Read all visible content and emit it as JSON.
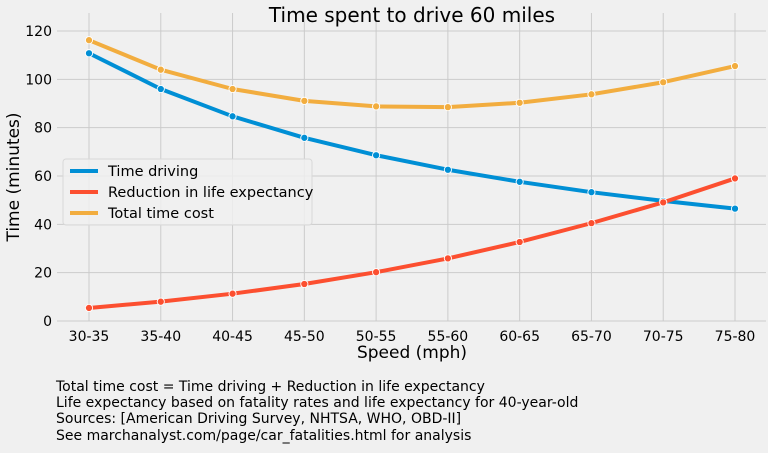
{
  "chart_data": {
    "type": "line",
    "title": "Time spent to drive 60 miles",
    "xlabel": "Speed (mph)",
    "ylabel": "Time (minutes)",
    "categories": [
      "30-35",
      "35-40",
      "40-45",
      "45-50",
      "50-55",
      "55-60",
      "60-65",
      "65-70",
      "70-75",
      "75-80"
    ],
    "ylim": [
      0,
      120
    ],
    "yticks": [
      0,
      20,
      40,
      60,
      80,
      100,
      120
    ],
    "grid": true,
    "legend_position": "center-left",
    "series": [
      {
        "name": "Time driving",
        "color": "#008fd5",
        "values": [
          110.8,
          96.0,
          84.7,
          75.8,
          68.6,
          62.6,
          57.6,
          53.3,
          49.7,
          46.5
        ]
      },
      {
        "name": "Reduction in life expectancy",
        "color": "#fc4f30",
        "values": [
          5.4,
          8.0,
          11.3,
          15.3,
          20.2,
          25.9,
          32.7,
          40.5,
          49.1,
          59.0
        ]
      },
      {
        "name": "Total time cost",
        "color": "#f2ad3f",
        "values": [
          116.2,
          104.0,
          96.0,
          91.1,
          88.8,
          88.5,
          90.3,
          93.8,
          98.8,
          105.5
        ]
      }
    ]
  },
  "footnotes": [
    "Total time cost = Time driving + Reduction in life expectancy",
    "Life expectancy based on fatality rates and life expectancy for 40-year-old",
    "Sources: [American Driving Survey, NHTSA, WHO, OBD-II]",
    "See marchanalyst.com/page/car_fatalities.html for analysis"
  ]
}
